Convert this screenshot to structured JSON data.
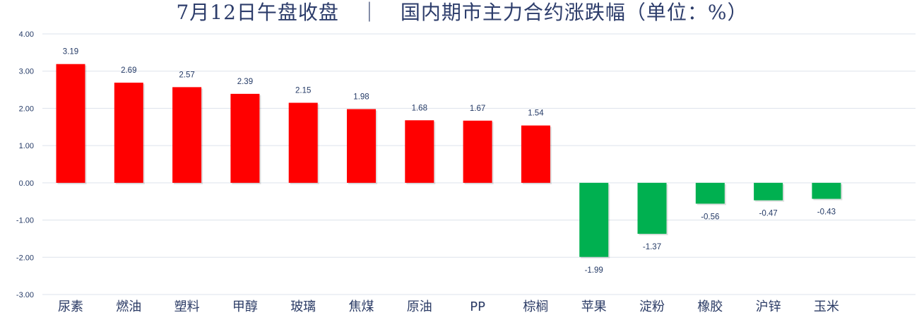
{
  "chart_data": {
    "type": "bar",
    "title": "7月12日午盘收盘　｜　国内期市主力合约涨跌幅（单位：%）",
    "xlabel": "",
    "ylabel": "",
    "ylim": [
      -3,
      4
    ],
    "yticks": [
      "4.00",
      "3.00",
      "2.00",
      "1.00",
      "0.00",
      "-1.00",
      "-2.00",
      "-3.00"
    ],
    "grid": true,
    "legend": "none",
    "categories": [
      "尿素",
      "燃油",
      "塑料",
      "甲醇",
      "玻璃",
      "焦煤",
      "原油",
      "PP",
      "棕榈",
      "苹果",
      "淀粉",
      "橡胶",
      "沪锌",
      "玉米"
    ],
    "series": [
      {
        "values": [
          3.19,
          2.69,
          2.57,
          2.39,
          2.15,
          1.98,
          1.68,
          1.67,
          1.54,
          -1.99,
          -1.37,
          -0.56,
          -0.47,
          -0.43
        ]
      }
    ],
    "data_labels": [
      "3.19",
      "2.69",
      "2.57",
      "2.39",
      "2.15",
      "1.98",
      "1.68",
      "1.67",
      "1.54",
      "-1.99",
      "-1.37",
      "-0.56",
      "-0.47",
      "-0.43"
    ],
    "colors": {
      "positive": "#ff0000",
      "negative": "#00b050"
    }
  }
}
